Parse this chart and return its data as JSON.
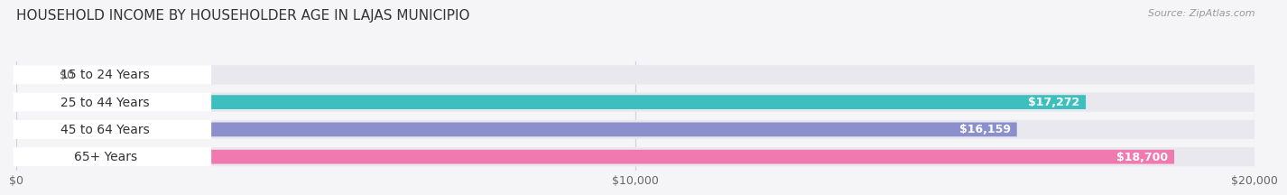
{
  "title": "HOUSEHOLD INCOME BY HOUSEHOLDER AGE IN LAJAS MUNICIPIO",
  "source": "Source: ZipAtlas.com",
  "categories": [
    "15 to 24 Years",
    "25 to 44 Years",
    "45 to 64 Years",
    "65+ Years"
  ],
  "values": [
    0,
    17272,
    16159,
    18700
  ],
  "bar_colors": [
    "#c9a8d4",
    "#3dbfbf",
    "#8b8fcc",
    "#f07ab0"
  ],
  "track_color": "#e8e8ee",
  "value_labels": [
    "$0",
    "$17,272",
    "$16,159",
    "$18,700"
  ],
  "xlim": [
    0,
    20000
  ],
  "xtick_values": [
    0,
    10000,
    20000
  ],
  "xtick_labels": [
    "$0",
    "$10,000",
    "$20,000"
  ],
  "background_color": "#f5f5f8",
  "label_fontsize": 10,
  "title_fontsize": 11,
  "value_fontsize": 9,
  "source_fontsize": 8
}
